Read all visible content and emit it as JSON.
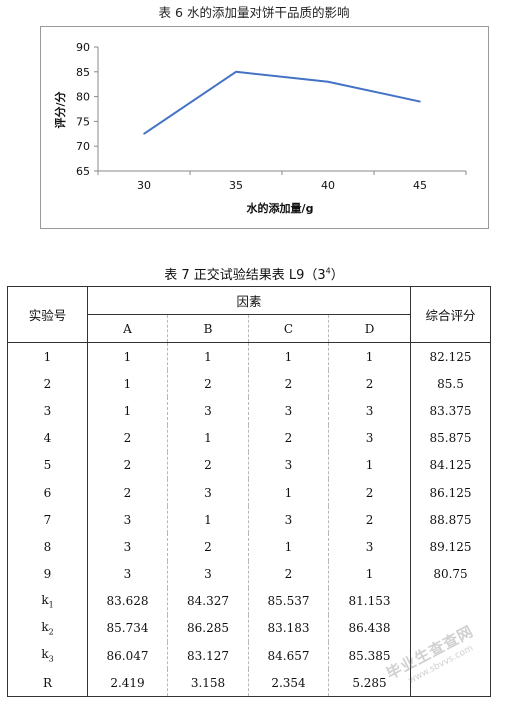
{
  "chart_data": {
    "type": "line",
    "title": "表 6  水的添加量对饼干品质的影响",
    "xlabel": "水的添加量/g",
    "ylabel": "评分/分",
    "x": [
      30,
      35,
      40,
      45
    ],
    "xticks": [
      "30",
      "35",
      "40",
      "45"
    ],
    "yticks": [
      "65",
      "70",
      "75",
      "80",
      "85",
      "90"
    ],
    "ylim": [
      65,
      90
    ],
    "series": [
      {
        "values": [
          72.5,
          85,
          83,
          79
        ],
        "color": "#4472c4"
      }
    ],
    "grid": false,
    "legend": "none"
  },
  "table": {
    "caption_prefix": "表 7 正交试验结果表  L9（3",
    "caption_sup": "4",
    "caption_suffix": "）",
    "headers": {
      "id": "实验号",
      "factors": "因素",
      "score": "综合评分",
      "factor_cols": [
        "A",
        "B",
        "C",
        "D"
      ]
    },
    "rows": [
      {
        "id": "1",
        "A": "1",
        "B": "1",
        "C": "1",
        "D": "1",
        "score": "82.125"
      },
      {
        "id": "2",
        "A": "1",
        "B": "2",
        "C": "2",
        "D": "2",
        "score": "85.5"
      },
      {
        "id": "3",
        "A": "1",
        "B": "3",
        "C": "3",
        "D": "3",
        "score": "83.375"
      },
      {
        "id": "4",
        "A": "2",
        "B": "1",
        "C": "2",
        "D": "3",
        "score": "85.875"
      },
      {
        "id": "5",
        "A": "2",
        "B": "2",
        "C": "3",
        "D": "1",
        "score": "84.125"
      },
      {
        "id": "6",
        "A": "2",
        "B": "3",
        "C": "1",
        "D": "2",
        "score": "86.125"
      },
      {
        "id": "7",
        "A": "3",
        "B": "1",
        "C": "3",
        "D": "2",
        "score": "88.875"
      },
      {
        "id": "8",
        "A": "3",
        "B": "2",
        "C": "1",
        "D": "3",
        "score": "89.125"
      },
      {
        "id": "9",
        "A": "3",
        "B": "3",
        "C": "2",
        "D": "1",
        "score": "80.75"
      }
    ],
    "summary": [
      {
        "label": "k",
        "sub": "1",
        "A": "83.628",
        "B": "84.327",
        "C": "85.537",
        "D": "81.153"
      },
      {
        "label": "k",
        "sub": "2",
        "A": "85.734",
        "B": "86.285",
        "C": "83.183",
        "D": "86.438"
      },
      {
        "label": "k",
        "sub": "3",
        "A": "86.047",
        "B": "83.127",
        "C": "84.657",
        "D": "85.385"
      },
      {
        "label": "R",
        "sub": "",
        "A": "2.419",
        "B": "3.158",
        "C": "2.354",
        "D": "5.285"
      }
    ]
  },
  "watermark": {
    "text": "毕业生查查网",
    "url": "www.sbvvs.com"
  }
}
